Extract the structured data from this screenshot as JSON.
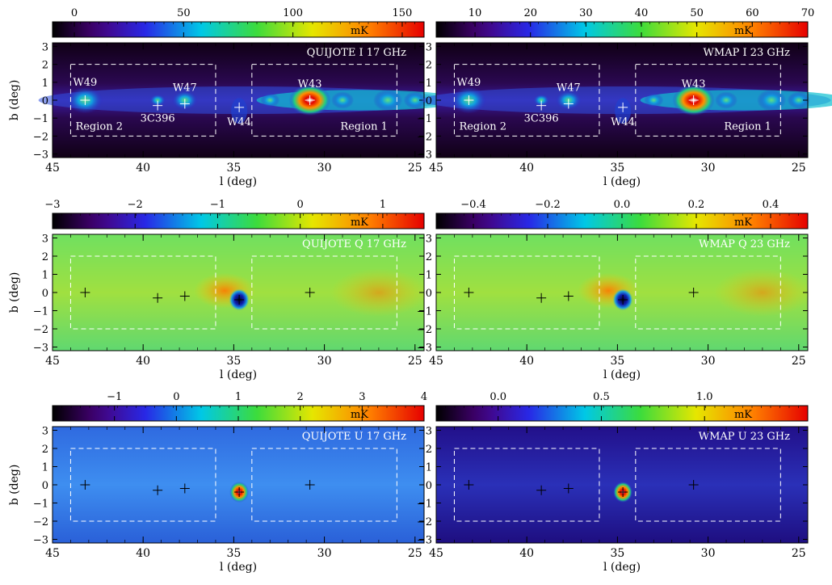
{
  "chart_data": {
    "type": "heatmap",
    "xlabel": "l (deg)",
    "ylabel": "b (deg)",
    "x_ticks": [
      45,
      40,
      35,
      30,
      25
    ],
    "y_ticks": [
      3,
      2,
      1,
      0,
      -1,
      -2,
      -3
    ],
    "xlim": [
      45,
      24.5
    ],
    "ylim": [
      -3.2,
      3.2
    ],
    "colorbar_unit": "mK",
    "sources": [
      {
        "name": "W49",
        "l": 43.2,
        "b": 0.0
      },
      {
        "name": "3C396",
        "l": 39.2,
        "b": -0.3
      },
      {
        "name": "W47",
        "l": 37.7,
        "b": -0.2
      },
      {
        "name": "W44",
        "l": 34.7,
        "b": -0.4
      },
      {
        "name": "W43",
        "l": 30.8,
        "b": 0.0
      }
    ],
    "regions": [
      {
        "name": "Region 2",
        "l_range": [
          44.0,
          36.0
        ],
        "b_range": [
          -2.0,
          2.0
        ]
      },
      {
        "name": "Region 1",
        "l_range": [
          34.0,
          26.0
        ],
        "b_range": [
          -2.0,
          2.0
        ]
      }
    ],
    "panels": [
      {
        "title": "QUIJOTE I 17 GHz",
        "stokes": "I",
        "colorbar_ticks": [
          "0",
          "50",
          "100",
          "150"
        ],
        "colorbar_range": [
          -10,
          160
        ],
        "cmap": "rainbow_dark",
        "show_labels": true
      },
      {
        "title": "WMAP I 23 GHz",
        "stokes": "I",
        "colorbar_ticks": [
          "10",
          "20",
          "30",
          "40",
          "50",
          "60",
          "70"
        ],
        "colorbar_range": [
          3,
          70
        ],
        "cmap": "rainbow_dark",
        "show_labels": true
      },
      {
        "title": "QUIJOTE Q 17 GHz",
        "stokes": "Q",
        "colorbar_ticks": [
          "−3",
          "−2",
          "−1",
          "0",
          "1"
        ],
        "colorbar_range": [
          -3,
          1.5
        ],
        "cmap": "rainbow_dark",
        "show_labels": false
      },
      {
        "title": "WMAP Q 23 GHz",
        "stokes": "Q",
        "colorbar_ticks": [
          "−0.4",
          "−0.2",
          "0.0",
          "0.2",
          "0.4"
        ],
        "colorbar_range": [
          -0.5,
          0.5
        ],
        "cmap": "rainbow_dark",
        "show_labels": false
      },
      {
        "title": "QUIJOTE U 17 GHz",
        "stokes": "U",
        "colorbar_ticks": [
          "−1",
          "0",
          "1",
          "2",
          "3",
          "4"
        ],
        "colorbar_range": [
          -2,
          4
        ],
        "cmap": "rainbow_dark",
        "show_labels": false
      },
      {
        "title": "WMAP U 23 GHz",
        "stokes": "U",
        "colorbar_ticks": [
          "0.0",
          "0.5",
          "1.0"
        ],
        "colorbar_range": [
          -0.3,
          1.5
        ],
        "cmap": "rainbow_dark",
        "show_labels": false
      }
    ]
  }
}
